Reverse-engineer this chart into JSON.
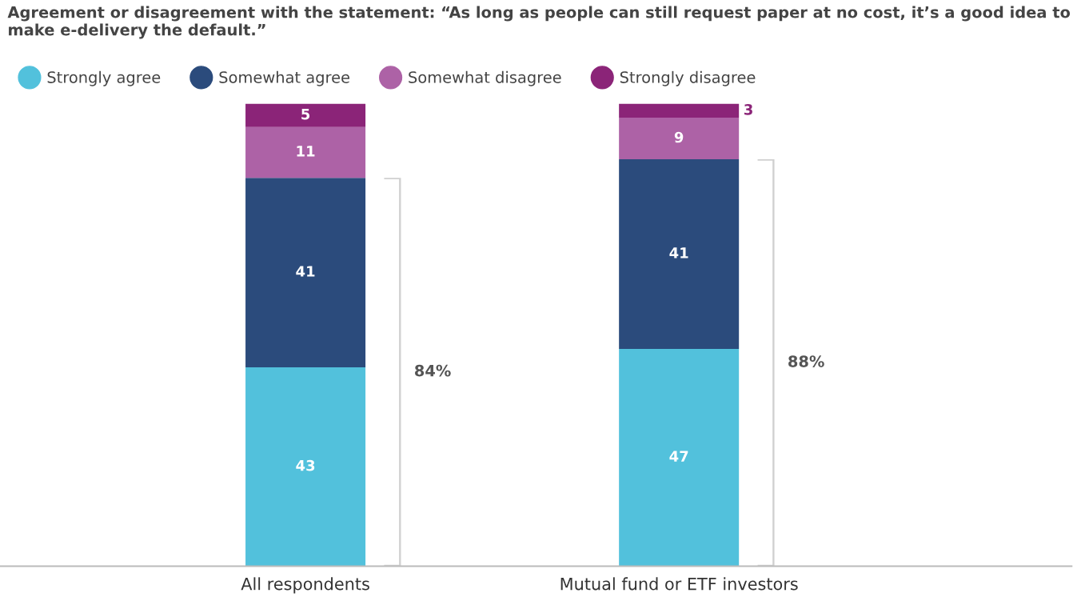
{
  "chart_data": {
    "type": "bar",
    "title": "Agreement or disagreement with the statement: “As long as people can still request paper at no cost, it’s a good idea to make e-delivery the default.”",
    "categories": [
      "All respondents",
      "Mutual fund or ETF investors"
    ],
    "stacked": true,
    "data_labels": true,
    "legend": "top left",
    "grid": false,
    "tick_labels": "x",
    "marker": "circle",
    "series": [
      {
        "name": "Strongly agree",
        "color": "#52c1dc",
        "values": [
          43,
          47
        ]
      },
      {
        "name": "Somewhat agree",
        "color": "#2b4b7c",
        "values": [
          41,
          41
        ]
      },
      {
        "name": "Somewhat disagree",
        "color": "#ad62a6",
        "values": [
          11,
          9
        ]
      },
      {
        "name": "Strongly disagree",
        "color": "#8b2478",
        "values": [
          5,
          3
        ]
      }
    ],
    "annotations": [
      "84%",
      "88%"
    ]
  }
}
